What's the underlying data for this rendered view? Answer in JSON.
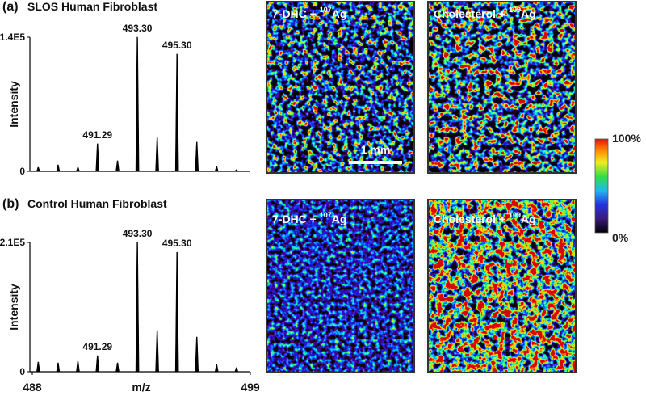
{
  "chart_data": [
    {
      "type": "stem",
      "panel_label": "(a)",
      "title": "SLOS Human Fibroblast",
      "ylabel": "Intensity",
      "color": "#000000",
      "x": [
        488.3,
        489.3,
        490.3,
        491.29,
        492.3,
        493.3,
        494.3,
        495.3,
        496.3,
        497.3,
        498.3
      ],
      "values": [
        4200,
        6700,
        4200,
        28700,
        11000,
        140000,
        35400,
        122300,
        30400,
        5000,
        1700
      ],
      "xlim": [
        488,
        499
      ],
      "ylim": [
        0,
        140000
      ],
      "yticks": [
        0,
        {
          "value": 140000,
          "label": "1.4E5"
        }
      ],
      "annotations": [
        {
          "value": 491.29,
          "label": "491.29"
        },
        {
          "value": 493.3,
          "label": "493.30"
        },
        {
          "value": 495.3,
          "label": "495.30"
        }
      ]
    },
    {
      "type": "stem",
      "panel_label": "(b)",
      "title": "Control Human Fibroblast",
      "ylabel": "Intensity",
      "xlabel": "m/z",
      "color": "#000000",
      "x": [
        488.3,
        489.3,
        490.3,
        491.29,
        492.3,
        493.3,
        494.3,
        495.3,
        496.3,
        497.3,
        498.3
      ],
      "values": [
        15700,
        14400,
        17000,
        26250,
        14400,
        210000,
        67000,
        194000,
        56400,
        11800,
        6600
      ],
      "xlim": [
        488,
        499
      ],
      "xticks": [
        488,
        499
      ],
      "ylim": [
        0,
        210000
      ],
      "yticks": [
        0,
        {
          "value": 210000,
          "label": "2.1E5"
        }
      ],
      "annotations": [
        {
          "value": 491.29,
          "label": "491.29"
        },
        {
          "value": 493.3,
          "label": "493.30"
        },
        {
          "value": 495.3,
          "label": "495.30"
        }
      ]
    }
  ],
  "images": [
    {
      "label": "7-DHC + ",
      "isotope": "107",
      "element": "Ag"
    },
    {
      "label": "Cholesterol + ",
      "isotope": "109",
      "element": "Ag"
    },
    {
      "label": "7-DHC + ",
      "isotope": "107",
      "element": "Ag"
    },
    {
      "label": "Cholesterol + ",
      "isotope": "109",
      "element": "Ag"
    }
  ],
  "scale_bar": {
    "label": "1 mm"
  },
  "colorbar": {
    "max_label": "100%",
    "min_label": "0%"
  }
}
